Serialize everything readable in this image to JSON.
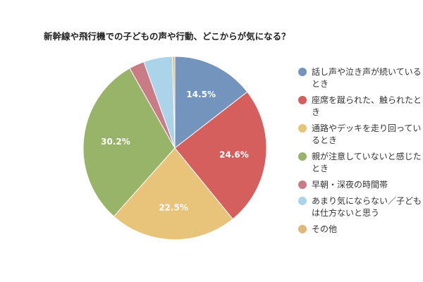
{
  "chart_data": {
    "type": "pie",
    "title": "新幹線や飛行機での子どもの声や行動、どこからが気になる？",
    "labels": [
      "話し声や泣き声が続いているとき",
      "座席を蹴られた、触られたとき",
      "通路やデッキを走り回っているとき",
      "親が注意していないと感じたとき",
      "早朝・深夜の時間帯",
      "あまり気にならない／子どもは仕方ないと思う",
      "その他"
    ],
    "values": [
      14.5,
      24.6,
      22.5,
      30.2,
      2.7,
      5.1,
      0.4
    ],
    "data_labels": [
      "14.5%",
      "24.6%",
      "22.5%",
      "30.2%",
      "",
      "",
      ""
    ],
    "colors": [
      "#7394bd",
      "#d55f5c",
      "#e8c47a",
      "#98b468",
      "#c97b86",
      "#abd4ea",
      "#e0b878"
    ],
    "legend_position": "right"
  }
}
